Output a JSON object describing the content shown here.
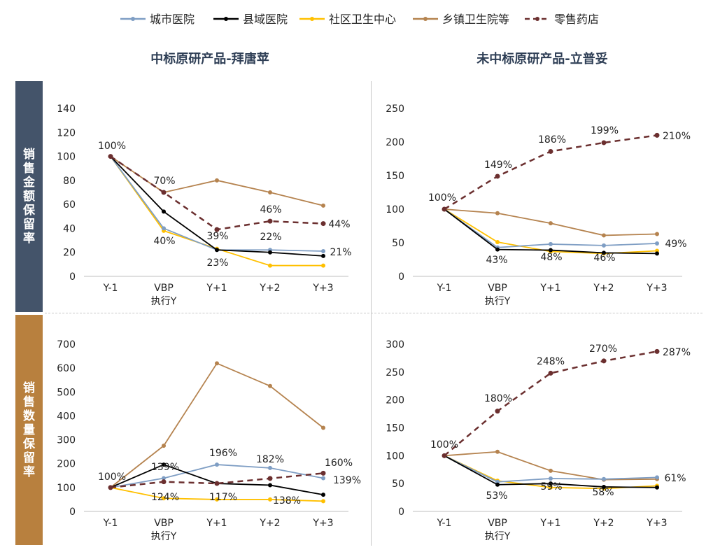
{
  "colors": {
    "城市医院": "#7f9ec4",
    "县域医院": "#000000",
    "社区卫生中心": "#ffc000",
    "乡镇卫生院等": "#b5834f",
    "零售药店": "#6b2f2f",
    "row1_bg": "#44546a",
    "row2_bg": "#b8803e"
  },
  "legend": [
    {
      "name": "城市医院",
      "style": "solid"
    },
    {
      "name": "县域医院",
      "style": "solid"
    },
    {
      "name": "社区卫生中心",
      "style": "solid"
    },
    {
      "name": "乡镇卫生院等",
      "style": "solid"
    },
    {
      "name": "零售药店",
      "style": "dashed"
    }
  ],
  "col_titles": [
    "中标原研产品-拜唐苹",
    "未中标原研产品-立普妥"
  ],
  "row_labels": [
    "销售金额保留率",
    "销售数量保留率"
  ],
  "chart_data": [
    {
      "type": "line",
      "categories": [
        "Y-1",
        "VBP\n执行Y",
        "Y+1",
        "Y+2",
        "Y+3"
      ],
      "ylim": [
        0,
        140
      ],
      "yticks": [
        0,
        20,
        40,
        60,
        80,
        100,
        120,
        140
      ],
      "series": [
        {
          "name": "城市医院",
          "values": [
            100,
            40,
            22,
            22,
            21
          ]
        },
        {
          "name": "县域医院",
          "values": [
            100,
            54,
            22,
            20,
            17
          ]
        },
        {
          "name": "社区卫生中心",
          "values": [
            100,
            38,
            23,
            9,
            9
          ]
        },
        {
          "name": "乡镇卫生院等",
          "values": [
            100,
            70,
            80,
            70,
            59
          ]
        },
        {
          "name": "零售药店",
          "values": [
            100,
            70,
            39,
            46,
            44
          ]
        }
      ],
      "annotations": [
        "100%",
        "70%",
        "40%",
        "39%",
        "23%",
        "46%",
        "22%",
        "44%",
        "21%"
      ]
    },
    {
      "type": "line",
      "categories": [
        "Y-1",
        "VBP\n执行Y",
        "Y+1",
        "Y+2",
        "Y+3"
      ],
      "ylim": [
        0,
        250
      ],
      "yticks": [
        0,
        50,
        100,
        150,
        200,
        250
      ],
      "series": [
        {
          "name": "城市医院",
          "values": [
            100,
            43,
            48,
            46,
            49
          ]
        },
        {
          "name": "县域医院",
          "values": [
            100,
            40,
            39,
            35,
            34
          ]
        },
        {
          "name": "社区卫生中心",
          "values": [
            100,
            51,
            37,
            34,
            38
          ]
        },
        {
          "name": "乡镇卫生院等",
          "values": [
            100,
            94,
            79,
            61,
            63
          ]
        },
        {
          "name": "零售药店",
          "values": [
            100,
            149,
            186,
            199,
            210
          ]
        }
      ],
      "annotations": [
        "100%",
        "149%",
        "186%",
        "199%",
        "210%",
        "43%",
        "48%",
        "46%",
        "49%"
      ]
    },
    {
      "type": "line",
      "categories": [
        "Y-1",
        "VBP\n执行Y",
        "Y+1",
        "Y+2",
        "Y+3"
      ],
      "ylim": [
        0,
        700
      ],
      "yticks": [
        0,
        100,
        200,
        300,
        400,
        500,
        600,
        700
      ],
      "series": [
        {
          "name": "城市医院",
          "values": [
            100,
            139,
            196,
            182,
            139
          ]
        },
        {
          "name": "县域医院",
          "values": [
            100,
            196,
            117,
            110,
            70
          ]
        },
        {
          "name": "社区卫生中心",
          "values": [
            100,
            55,
            50,
            50,
            43
          ]
        },
        {
          "name": "乡镇卫生院等",
          "values": [
            100,
            275,
            620,
            525,
            350
          ]
        },
        {
          "name": "零售药店",
          "values": [
            100,
            124,
            117,
            138,
            160
          ]
        }
      ],
      "annotations": [
        "100%",
        "139%",
        "124%",
        "196%",
        "117%",
        "182%",
        "138%",
        "160%",
        "139%"
      ]
    },
    {
      "type": "line",
      "categories": [
        "Y-1",
        "VBP\n执行Y",
        "Y+1",
        "Y+2",
        "Y+3"
      ],
      "ylim": [
        0,
        300
      ],
      "yticks": [
        0,
        50,
        100,
        150,
        200,
        250,
        300
      ],
      "series": [
        {
          "name": "城市医院",
          "values": [
            100,
            53,
            59,
            58,
            61
          ]
        },
        {
          "name": "县域医院",
          "values": [
            100,
            48,
            50,
            44,
            43
          ]
        },
        {
          "name": "社区卫生中心",
          "values": [
            100,
            55,
            43,
            41,
            46
          ]
        },
        {
          "name": "乡镇卫生院等",
          "values": [
            100,
            107,
            73,
            57,
            58
          ]
        },
        {
          "name": "零售药店",
          "values": [
            100,
            180,
            248,
            270,
            287
          ]
        }
      ],
      "annotations": [
        "100%",
        "180%",
        "248%",
        "270%",
        "287%",
        "53%",
        "59%",
        "58%",
        "61%"
      ]
    }
  ]
}
